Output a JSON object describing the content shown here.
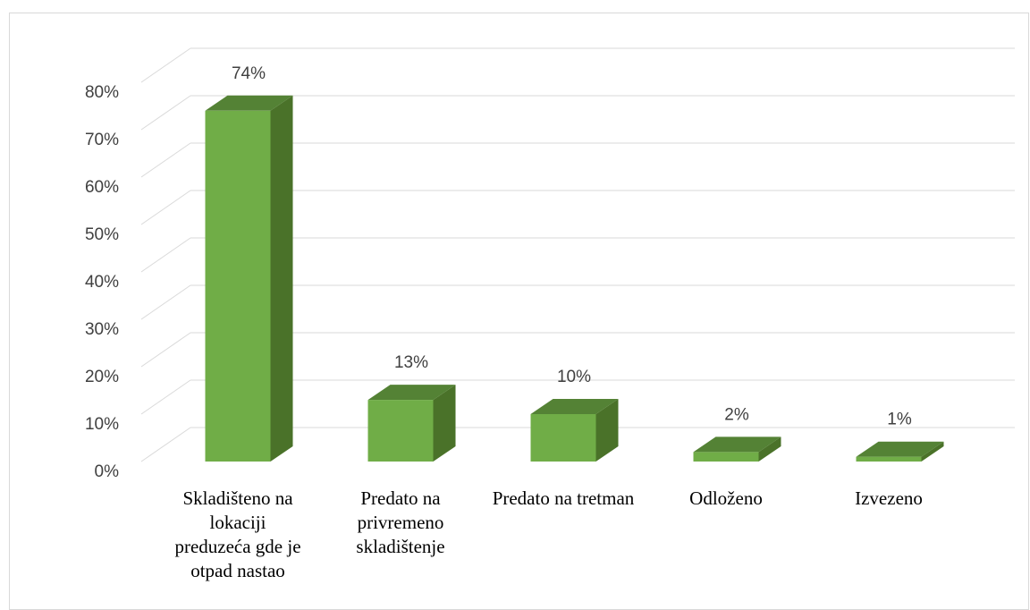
{
  "chart_data": {
    "type": "bar3d",
    "categories": [
      "Skladišteno na lokaciji preduzeća gde je otpad nastao",
      "Predato na privremeno skladištenje",
      "Predato na tretman",
      "Odloženo",
      "Izvezeno"
    ],
    "values": [
      74,
      13,
      10,
      2,
      1
    ],
    "value_labels": [
      "74%",
      "13%",
      "10%",
      "2%",
      "1%"
    ],
    "color": "#70ad47",
    "ylim": [
      0,
      80
    ],
    "yticks": [
      {
        "value": 0,
        "label": "0%"
      },
      {
        "value": 10,
        "label": "10%"
      },
      {
        "value": 20,
        "label": "20%"
      },
      {
        "value": 30,
        "label": "30%"
      },
      {
        "value": 40,
        "label": "40%"
      },
      {
        "value": 50,
        "label": "50%"
      },
      {
        "value": 60,
        "label": "60%"
      },
      {
        "value": 70,
        "label": "70%"
      },
      {
        "value": 80,
        "label": "80%"
      }
    ],
    "grid": true
  }
}
